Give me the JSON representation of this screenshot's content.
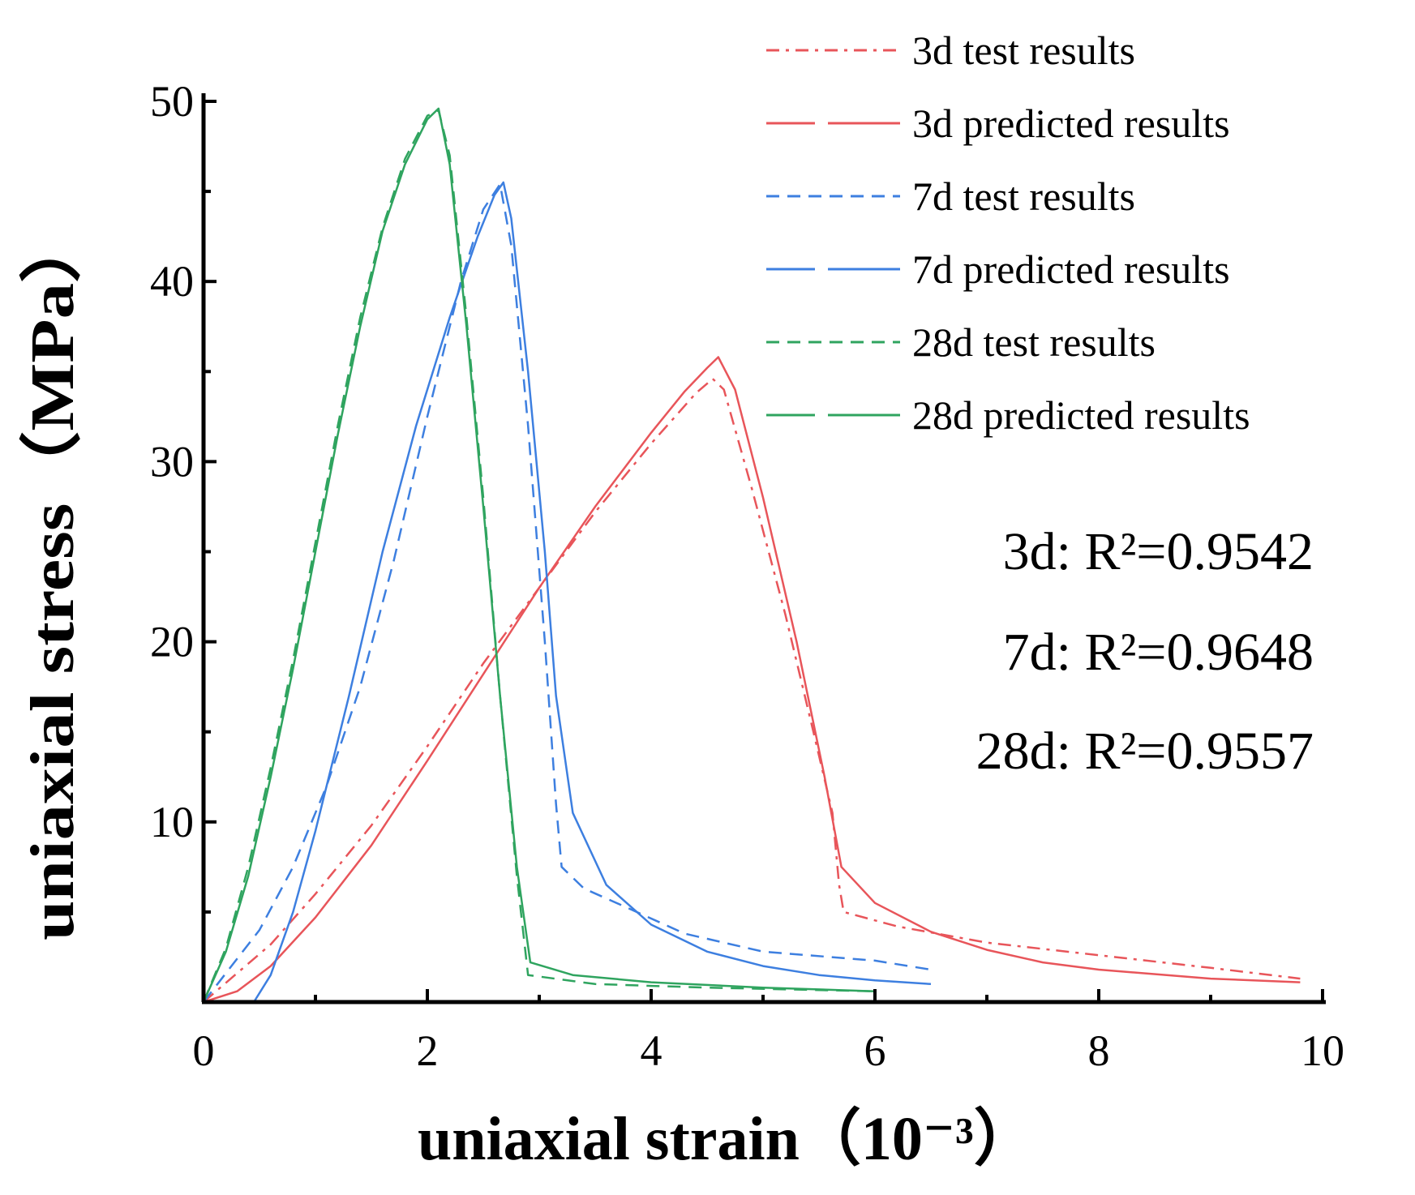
{
  "chart_data": {
    "type": "line",
    "title": "",
    "xlabel_main": "uniaxial strain",
    "xlabel_unit": "（10⁻³）",
    "ylabel": "uniaxial stress（MPa）",
    "xlim": [
      0,
      10
    ],
    "ylim": [
      0,
      50
    ],
    "x_ticks": [
      0,
      2,
      4,
      6,
      8,
      10
    ],
    "y_ticks": [
      10,
      20,
      30,
      40,
      50
    ],
    "legend_position": "top-right",
    "series": [
      {
        "name": "3d test results",
        "color": "#e8555a",
        "style": "dashdot",
        "points": [
          [
            0,
            0
          ],
          [
            0.3,
            1.6
          ],
          [
            0.6,
            3.2
          ],
          [
            1.0,
            6.0
          ],
          [
            1.5,
            9.8
          ],
          [
            2.0,
            14.2
          ],
          [
            2.5,
            18.8
          ],
          [
            3.0,
            23.0
          ],
          [
            3.5,
            27.2
          ],
          [
            4.0,
            31.0
          ],
          [
            4.4,
            33.8
          ],
          [
            4.55,
            34.6
          ],
          [
            4.65,
            34.0
          ],
          [
            4.9,
            28.5
          ],
          [
            5.2,
            21.5
          ],
          [
            5.45,
            15.0
          ],
          [
            5.62,
            10.5
          ],
          [
            5.68,
            6.5
          ],
          [
            5.72,
            5.0
          ],
          [
            6.2,
            4.2
          ],
          [
            7.0,
            3.3
          ],
          [
            8.0,
            2.6
          ],
          [
            9.0,
            1.9
          ],
          [
            9.8,
            1.3
          ]
        ]
      },
      {
        "name": "3d predicted results",
        "color": "#e8555a",
        "style": "solid",
        "points": [
          [
            0,
            0
          ],
          [
            0.3,
            0.6
          ],
          [
            0.6,
            2.0
          ],
          [
            1.0,
            4.7
          ],
          [
            1.5,
            8.7
          ],
          [
            2.0,
            13.4
          ],
          [
            2.5,
            18.2
          ],
          [
            3.0,
            23.0
          ],
          [
            3.5,
            27.5
          ],
          [
            4.0,
            31.6
          ],
          [
            4.3,
            33.9
          ],
          [
            4.5,
            35.2
          ],
          [
            4.6,
            35.8
          ],
          [
            4.75,
            34.0
          ],
          [
            5.0,
            28.0
          ],
          [
            5.3,
            20.0
          ],
          [
            5.55,
            12.5
          ],
          [
            5.7,
            7.5
          ],
          [
            6.0,
            5.5
          ],
          [
            6.5,
            3.9
          ],
          [
            7.0,
            2.9
          ],
          [
            7.5,
            2.2
          ],
          [
            8.0,
            1.8
          ],
          [
            9.0,
            1.3
          ],
          [
            9.8,
            1.1
          ]
        ]
      },
      {
        "name": "7d test results",
        "color": "#3d7fe0",
        "style": "dashed",
        "points": [
          [
            0,
            0
          ],
          [
            0.2,
            1.6
          ],
          [
            0.5,
            4.0
          ],
          [
            0.8,
            7.5
          ],
          [
            1.1,
            12.0
          ],
          [
            1.4,
            17.5
          ],
          [
            1.7,
            24.5
          ],
          [
            2.0,
            32.5
          ],
          [
            2.3,
            40.0
          ],
          [
            2.5,
            44.0
          ],
          [
            2.65,
            45.4
          ],
          [
            2.75,
            42.0
          ],
          [
            2.9,
            32.0
          ],
          [
            3.05,
            20.0
          ],
          [
            3.15,
            11.0
          ],
          [
            3.2,
            7.5
          ],
          [
            3.4,
            6.3
          ],
          [
            3.8,
            5.2
          ],
          [
            4.3,
            3.8
          ],
          [
            5.0,
            2.8
          ],
          [
            6.0,
            2.3
          ],
          [
            6.5,
            1.8
          ]
        ]
      },
      {
        "name": "7d predicted results",
        "color": "#3d7fe0",
        "style": "solid",
        "points": [
          [
            0.45,
            0
          ],
          [
            0.6,
            1.5
          ],
          [
            0.8,
            5.0
          ],
          [
            1.0,
            9.5
          ],
          [
            1.3,
            17.0
          ],
          [
            1.6,
            25.0
          ],
          [
            1.9,
            32.0
          ],
          [
            2.2,
            38.0
          ],
          [
            2.45,
            42.5
          ],
          [
            2.6,
            44.8
          ],
          [
            2.68,
            45.5
          ],
          [
            2.75,
            43.5
          ],
          [
            2.9,
            35.0
          ],
          [
            3.05,
            25.0
          ],
          [
            3.15,
            17.0
          ],
          [
            3.3,
            10.5
          ],
          [
            3.6,
            6.5
          ],
          [
            4.0,
            4.3
          ],
          [
            4.5,
            2.8
          ],
          [
            5.0,
            2.0
          ],
          [
            5.5,
            1.5
          ],
          [
            6.0,
            1.2
          ],
          [
            6.5,
            1.0
          ]
        ]
      },
      {
        "name": "28d test results",
        "color": "#2fa45f",
        "style": "dashed",
        "points": [
          [
            0,
            0
          ],
          [
            0.2,
            3.0
          ],
          [
            0.4,
            7.5
          ],
          [
            0.6,
            13.0
          ],
          [
            0.8,
            19.0
          ],
          [
            1.0,
            25.5
          ],
          [
            1.2,
            32.0
          ],
          [
            1.4,
            38.0
          ],
          [
            1.6,
            43.0
          ],
          [
            1.8,
            46.8
          ],
          [
            2.0,
            49.2
          ],
          [
            2.1,
            49.5
          ],
          [
            2.2,
            47.0
          ],
          [
            2.35,
            38.0
          ],
          [
            2.5,
            28.0
          ],
          [
            2.65,
            17.0
          ],
          [
            2.8,
            7.0
          ],
          [
            2.9,
            1.5
          ],
          [
            3.5,
            1.0
          ],
          [
            4.5,
            0.8
          ],
          [
            6.0,
            0.6
          ]
        ]
      },
      {
        "name": "28d predicted results",
        "color": "#2fa45f",
        "style": "solid",
        "points": [
          [
            0,
            0
          ],
          [
            0.2,
            2.8
          ],
          [
            0.4,
            7.0
          ],
          [
            0.6,
            12.5
          ],
          [
            0.8,
            18.5
          ],
          [
            1.0,
            25.0
          ],
          [
            1.2,
            31.5
          ],
          [
            1.4,
            37.5
          ],
          [
            1.6,
            42.8
          ],
          [
            1.8,
            46.5
          ],
          [
            2.0,
            49.0
          ],
          [
            2.1,
            49.6
          ],
          [
            2.2,
            46.5
          ],
          [
            2.35,
            37.5
          ],
          [
            2.5,
            27.5
          ],
          [
            2.65,
            17.0
          ],
          [
            2.8,
            7.5
          ],
          [
            2.92,
            2.2
          ],
          [
            3.3,
            1.5
          ],
          [
            4.0,
            1.1
          ],
          [
            5.0,
            0.8
          ],
          [
            6.0,
            0.6
          ]
        ]
      }
    ],
    "annotations": [
      {
        "id": "r2-3d",
        "text": "3d: R²=0.9542"
      },
      {
        "id": "r2-7d",
        "text": "7d: R²=0.9648"
      },
      {
        "id": "r2-28d",
        "text": "28d: R²=0.9557"
      }
    ]
  }
}
